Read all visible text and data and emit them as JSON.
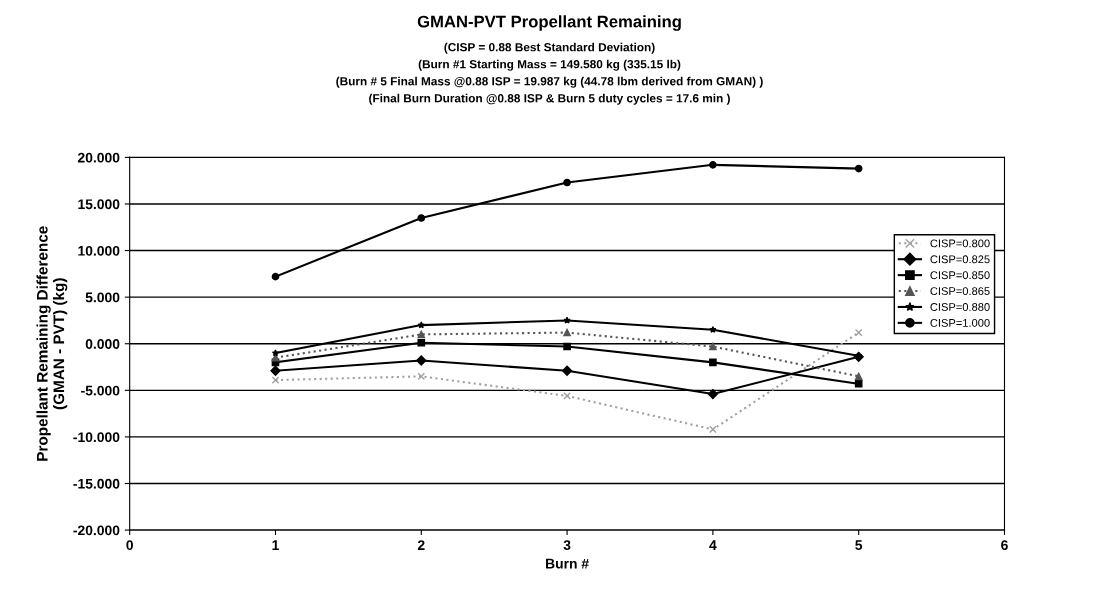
{
  "chart_data": {
    "type": "line",
    "title": "GMAN-PVT Propellant Remaining",
    "subtitle": "(CISP = 0.88 Best Standard Deviation)\n(Burn #1 Starting Mass = 149.580 kg (335.15 lb)\n(Burn # 5 Final Mass @0.88 ISP = 19.987 kg (44.78 lbm derived from GMAN) )\n(Final Burn Duration @0.88 ISP & Burn 5 duty cycles = 17.6 min )",
    "xlabel": "Burn #",
    "ylabel": "Propellant Remaining Difference\n(GMAN - PVT) (kg)",
    "x": [
      1,
      2,
      3,
      4,
      5
    ],
    "series": [
      {
        "name": "CISP=0.800",
        "color": "#a0a0a0",
        "marker": "cross",
        "line_style": "dotted",
        "values": [
          -3.9,
          -3.5,
          -5.6,
          -9.2,
          1.2
        ]
      },
      {
        "name": "CISP=0.825",
        "color": "#000000",
        "marker": "diamond",
        "line_style": "solid",
        "values": [
          -2.9,
          -1.8,
          -2.9,
          -5.4,
          -1.4
        ]
      },
      {
        "name": "CISP=0.850",
        "color": "#000000",
        "marker": "square",
        "line_style": "solid",
        "values": [
          -2.0,
          0.1,
          -0.3,
          -2.0,
          -4.3
        ]
      },
      {
        "name": "CISP=0.865",
        "color": "#555555",
        "marker": "triangle",
        "line_style": "dotted",
        "values": [
          -1.5,
          1.0,
          1.2,
          -0.3,
          -3.5
        ]
      },
      {
        "name": "CISP=0.880",
        "color": "#000000",
        "marker": "star",
        "line_style": "solid",
        "values": [
          -1.0,
          2.0,
          2.5,
          1.5,
          -1.3
        ]
      },
      {
        "name": "CISP=1.000",
        "color": "#000000",
        "marker": "circle",
        "line_style": "solid",
        "values": [
          7.2,
          13.5,
          17.3,
          19.2,
          18.8
        ]
      }
    ],
    "xlim": [
      0,
      6
    ],
    "xticks": [
      0,
      1,
      2,
      3,
      4,
      5,
      6
    ],
    "ylim": [
      -20,
      20
    ],
    "yticks": [
      {
        "value": -20,
        "label": "-20.000"
      },
      {
        "value": -15,
        "label": "-15.000"
      },
      {
        "value": -10,
        "label": "-10.000"
      },
      {
        "value": -5,
        "label": "-5.000"
      },
      {
        "value": 0,
        "label": "0.000"
      },
      {
        "value": 5,
        "label": "5.000"
      },
      {
        "value": 10,
        "label": "10.000"
      },
      {
        "value": 15,
        "label": "15.000"
      },
      {
        "value": 20,
        "label": "20.000"
      }
    ],
    "grid": "y",
    "legend": "right"
  }
}
